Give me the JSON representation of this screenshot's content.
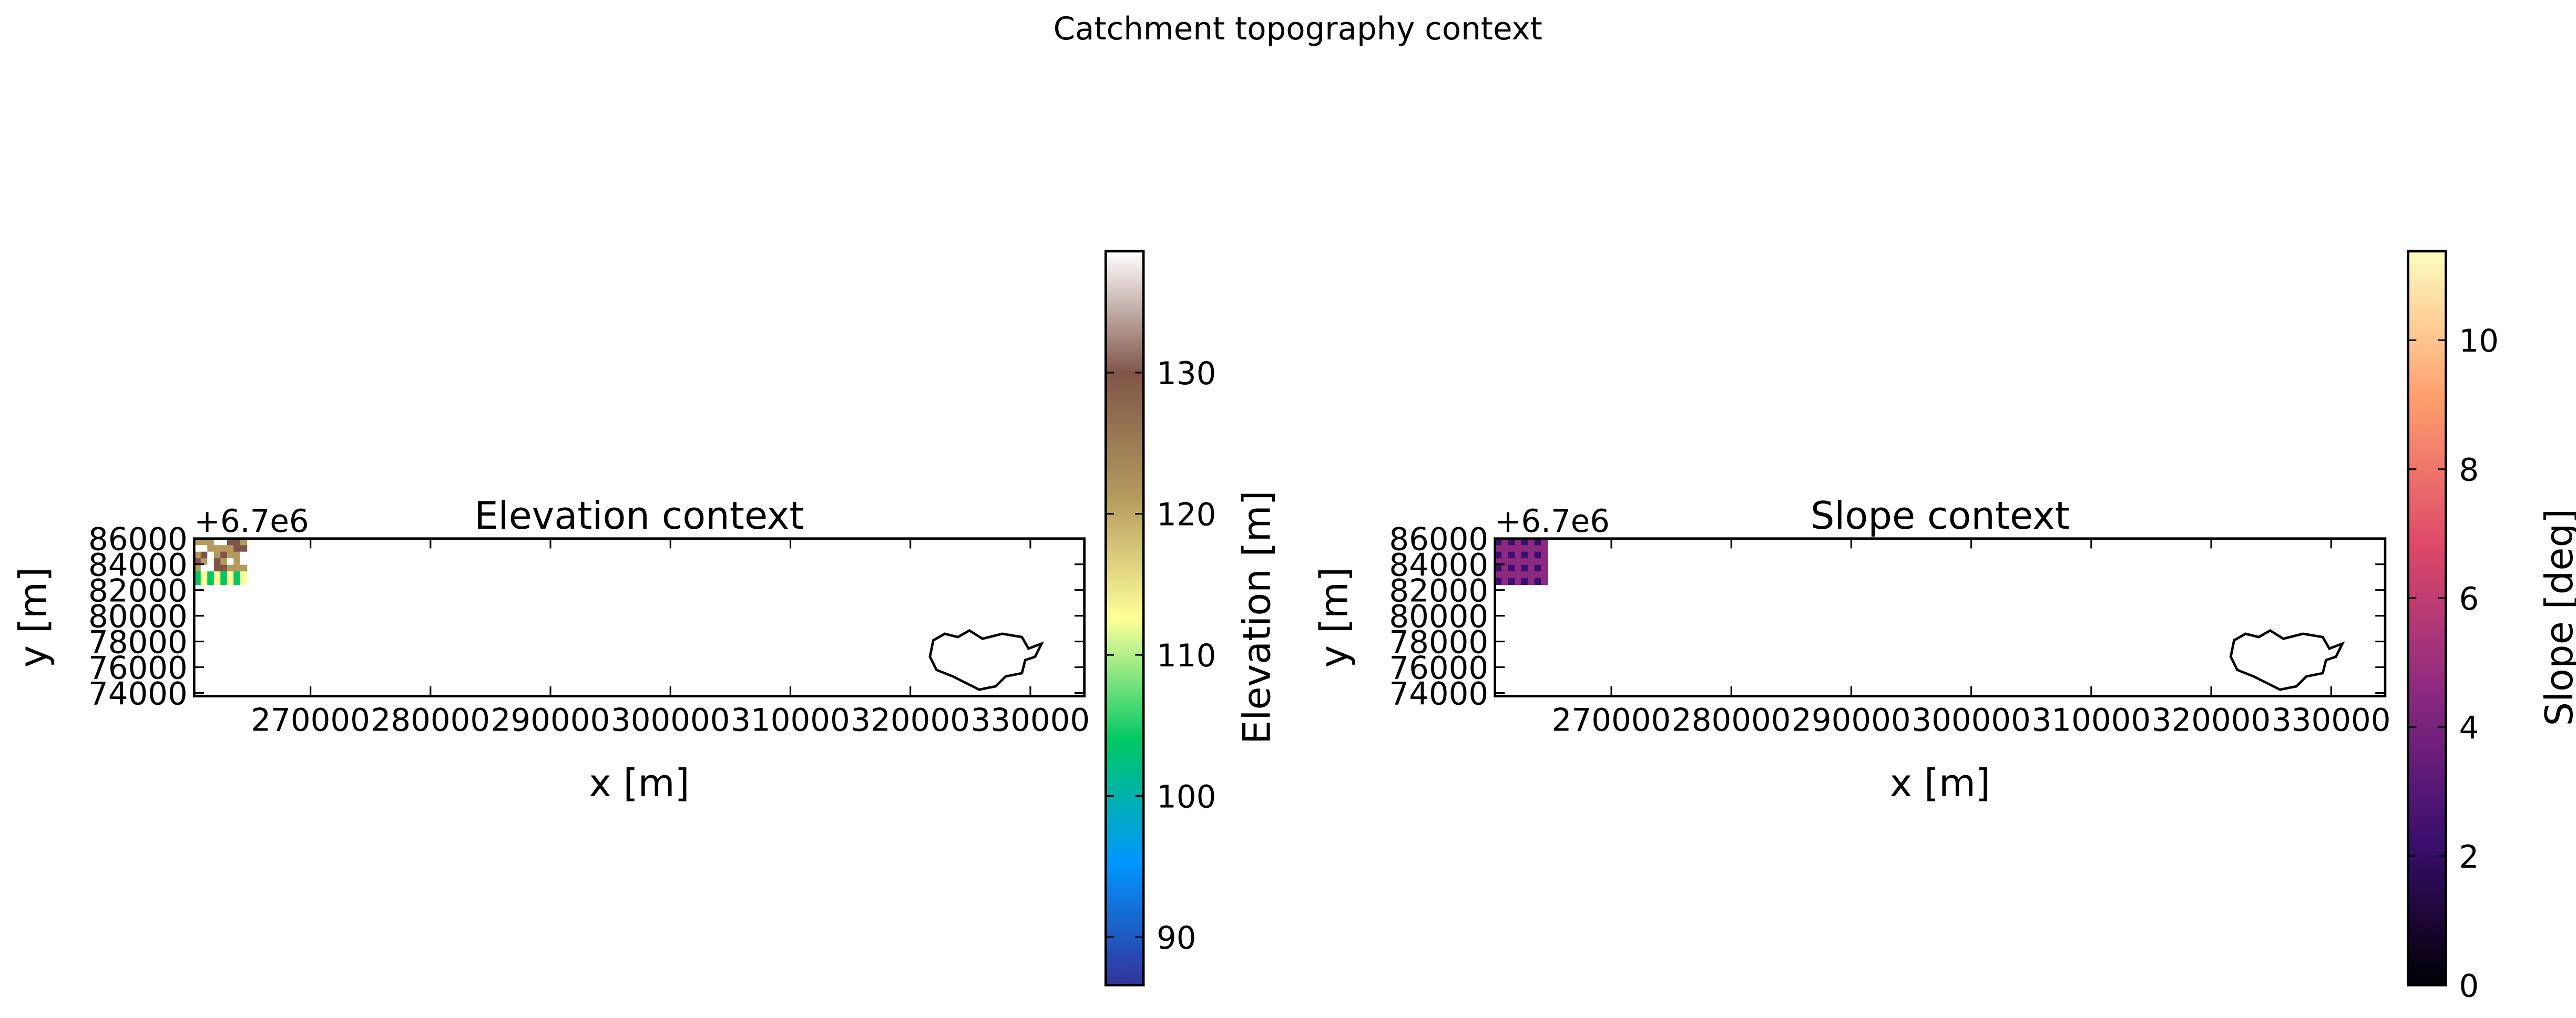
{
  "title": "Catchment topography context",
  "chart_data": [
    {
      "type": "heatmap",
      "title": "Elevation context",
      "xlabel": "x [m]",
      "ylabel": "y [m]",
      "offset_label": "+6.7e6",
      "xlim": [
        260300,
        334500
      ],
      "xticks": [
        270000,
        280000,
        290000,
        300000,
        310000,
        320000,
        330000
      ],
      "ylim": [
        73750,
        86000
      ],
      "yticks": [
        74000,
        76000,
        78000,
        80000,
        82000,
        84000,
        86000
      ],
      "colorbar": {
        "label": "Elevation [m]",
        "clim": [
          86.6,
          138.6
        ],
        "ticks": [
          90,
          100,
          110,
          120,
          130
        ],
        "colors": [
          "#333399",
          "#0096ff",
          "#00c864",
          "#ffff99",
          "#b39a5e",
          "#805548",
          "#ffffff"
        ]
      }
    },
    {
      "type": "heatmap",
      "title": "Slope context",
      "xlabel": "x [m]",
      "ylabel": "y [m]",
      "offset_label": "+6.7e6",
      "xlim": [
        260300,
        334500
      ],
      "xticks": [
        270000,
        280000,
        290000,
        300000,
        310000,
        320000,
        330000
      ],
      "ylim": [
        73750,
        86000
      ],
      "yticks": [
        74000,
        76000,
        78000,
        80000,
        82000,
        84000,
        86000
      ],
      "colorbar": {
        "label": "Slope [deg]",
        "clim": [
          0,
          11.38
        ],
        "ticks": [
          0,
          2,
          4,
          6,
          8,
          10
        ],
        "colors": [
          "#000004",
          "#3b0f70",
          "#8c2981",
          "#de4968",
          "#fe9f6d",
          "#fcfdbf"
        ]
      }
    }
  ]
}
